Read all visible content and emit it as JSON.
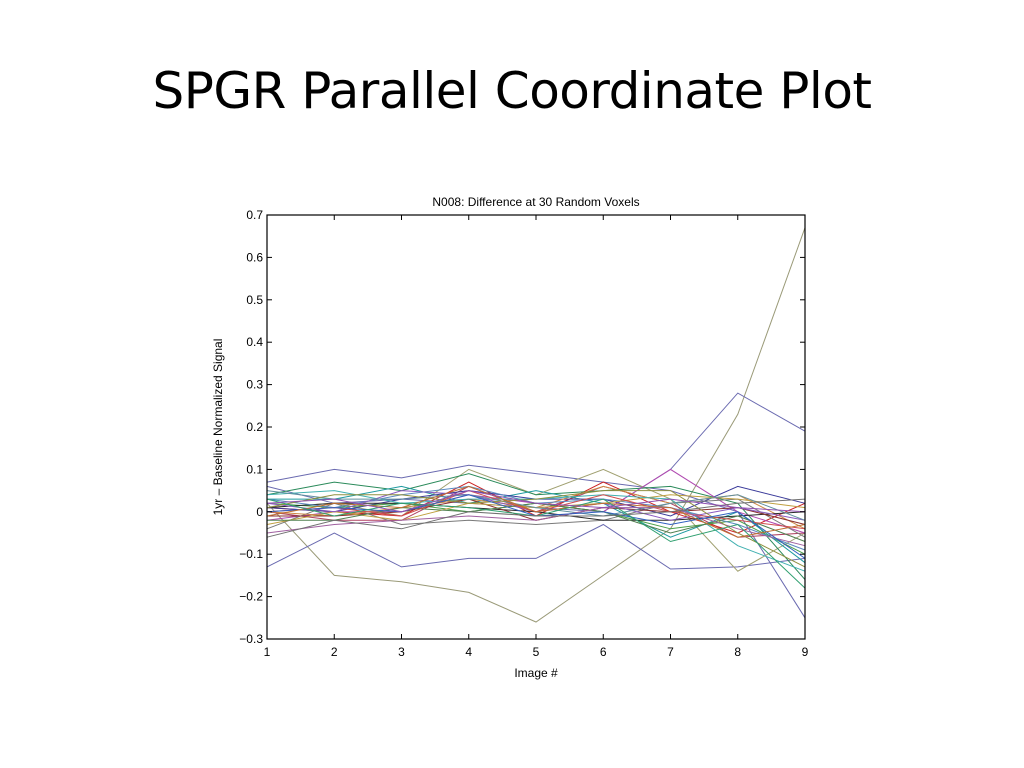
{
  "slide": {
    "title": "SPGR Parallel Coordinate Plot"
  },
  "chart_data": {
    "type": "line",
    "title": "N008: Difference at 30 Random Voxels",
    "xlabel": "Image #",
    "ylabel": "1yr – Baseline Normalized Signal",
    "x": [
      1,
      2,
      3,
      4,
      5,
      6,
      7,
      8,
      9
    ],
    "xlim": [
      1,
      9
    ],
    "ylim": [
      -0.3,
      0.7
    ],
    "xticks": [
      "1",
      "2",
      "3",
      "4",
      "5",
      "6",
      "7",
      "8",
      "9"
    ],
    "yticks": [
      "0.7",
      "0.6",
      "0.5",
      "0.4",
      "0.3",
      "0.2",
      "0.1",
      "0",
      "−0.1",
      "−0.2",
      "−0.3"
    ],
    "ytick_values": [
      0.7,
      0.6,
      0.5,
      0.4,
      0.3,
      0.2,
      0.1,
      0,
      -0.1,
      -0.2,
      -0.3
    ],
    "grid": false,
    "series": [
      {
        "color": "#9a9a78",
        "values": [
          0.02,
          -0.15,
          -0.165,
          -0.19,
          -0.26,
          -0.15,
          -0.04,
          0.23,
          0.67
        ]
      },
      {
        "color": "#6a6ab0",
        "values": [
          0.06,
          0.02,
          0.03,
          0.02,
          0.01,
          0.0,
          0.1,
          0.28,
          0.19
        ]
      },
      {
        "color": "#6a6ab0",
        "values": [
          0.07,
          0.1,
          0.08,
          0.11,
          0.09,
          0.07,
          0.05,
          0.0,
          -0.25
        ]
      },
      {
        "color": "#6a6ab0",
        "values": [
          -0.13,
          -0.05,
          -0.13,
          -0.11,
          -0.11,
          -0.03,
          -0.135,
          -0.13,
          -0.11
        ]
      },
      {
        "color": "#a0a070",
        "values": [
          0.01,
          0.02,
          -0.01,
          0.1,
          0.04,
          0.1,
          0.03,
          -0.14,
          -0.05
        ]
      },
      {
        "color": "#b04060",
        "values": [
          0.0,
          -0.02,
          -0.02,
          0.06,
          0.0,
          0.06,
          0.02,
          -0.06,
          -0.05
        ]
      },
      {
        "color": "#cc2222",
        "values": [
          0.01,
          0.0,
          -0.01,
          0.07,
          -0.01,
          0.07,
          0.0,
          -0.05,
          0.02
        ]
      },
      {
        "color": "#2a8a5a",
        "values": [
          0.04,
          0.07,
          0.05,
          0.09,
          0.04,
          0.05,
          0.06,
          0.02,
          -0.16
        ]
      },
      {
        "color": "#1f9aa0",
        "values": [
          0.03,
          0.03,
          0.06,
          0.02,
          0.05,
          0.02,
          -0.06,
          0.0,
          -0.12
        ]
      },
      {
        "color": "#3a3a9a",
        "values": [
          0.01,
          0.0,
          0.03,
          0.05,
          0.03,
          0.03,
          -0.01,
          0.06,
          0.02
        ]
      },
      {
        "color": "#b04ab0",
        "values": [
          -0.02,
          0.0,
          0.0,
          0.04,
          0.02,
          0.0,
          0.1,
          0.0,
          -0.05
        ]
      },
      {
        "color": "#7a7a7a",
        "values": [
          -0.04,
          0.02,
          -0.03,
          -0.02,
          -0.03,
          -0.02,
          0.02,
          0.03,
          -0.06
        ]
      },
      {
        "color": "#cc8844",
        "values": [
          0.0,
          -0.01,
          0.01,
          0.03,
          0.01,
          0.06,
          0.02,
          0.04,
          -0.04
        ]
      },
      {
        "color": "#4aa04a",
        "values": [
          0.02,
          0.01,
          0.02,
          0.0,
          0.02,
          0.0,
          -0.04,
          -0.02,
          -0.1
        ]
      },
      {
        "color": "#2a2a2a",
        "values": [
          0.01,
          0.02,
          0.02,
          0.01,
          0.0,
          -0.02,
          -0.02,
          -0.01,
          0.0
        ]
      },
      {
        "color": "#8a3030",
        "values": [
          -0.01,
          -0.01,
          0.0,
          0.03,
          -0.02,
          0.01,
          0.0,
          0.01,
          -0.03
        ]
      },
      {
        "color": "#5a8ac0",
        "values": [
          0.03,
          0.01,
          0.04,
          0.06,
          0.02,
          0.03,
          0.01,
          -0.03,
          -0.09
        ]
      },
      {
        "color": "#c0a040",
        "values": [
          -0.03,
          0.0,
          -0.02,
          0.02,
          0.01,
          0.02,
          0.04,
          0.03,
          0.01
        ]
      },
      {
        "color": "#40b0b0",
        "values": [
          0.04,
          0.05,
          0.02,
          0.03,
          0.03,
          0.04,
          0.03,
          -0.08,
          -0.14
        ]
      },
      {
        "color": "#8a5ac0",
        "values": [
          0.02,
          0.0,
          0.05,
          0.04,
          0.0,
          0.02,
          -0.02,
          0.01,
          -0.02
        ]
      },
      {
        "color": "#508050",
        "values": [
          -0.02,
          -0.02,
          0.01,
          0.0,
          0.02,
          0.0,
          -0.05,
          -0.01,
          -0.07
        ]
      },
      {
        "color": "#d05050",
        "values": [
          0.0,
          0.01,
          -0.01,
          0.05,
          0.0,
          0.04,
          0.0,
          -0.02,
          -0.04
        ]
      },
      {
        "color": "#6090a0",
        "values": [
          0.05,
          0.03,
          0.03,
          0.04,
          0.01,
          -0.01,
          0.02,
          0.04,
          -0.02
        ]
      },
      {
        "color": "#a060a0",
        "values": [
          -0.05,
          -0.03,
          -0.02,
          -0.01,
          -0.02,
          0.01,
          0.01,
          -0.04,
          -0.08
        ]
      },
      {
        "color": "#909040",
        "values": [
          0.01,
          0.04,
          0.04,
          0.02,
          0.03,
          0.05,
          0.05,
          -0.05,
          -0.13
        ]
      },
      {
        "color": "#3060c0",
        "values": [
          0.0,
          0.01,
          0.0,
          0.04,
          -0.01,
          0.0,
          -0.03,
          0.0,
          -0.11
        ]
      },
      {
        "color": "#c07030",
        "values": [
          -0.01,
          0.02,
          0.01,
          0.06,
          0.0,
          0.02,
          0.01,
          -0.06,
          -0.03
        ]
      },
      {
        "color": "#30a070",
        "values": [
          0.03,
          -0.01,
          0.02,
          0.01,
          -0.01,
          0.03,
          -0.07,
          -0.03,
          -0.18
        ]
      },
      {
        "color": "#707070",
        "values": [
          -0.06,
          -0.02,
          -0.04,
          0.0,
          -0.01,
          -0.01,
          0.0,
          0.02,
          0.03
        ]
      },
      {
        "color": "#9050b0",
        "values": [
          0.02,
          0.03,
          0.0,
          0.05,
          0.02,
          0.01,
          0.03,
          0.01,
          0.0
        ]
      }
    ]
  }
}
